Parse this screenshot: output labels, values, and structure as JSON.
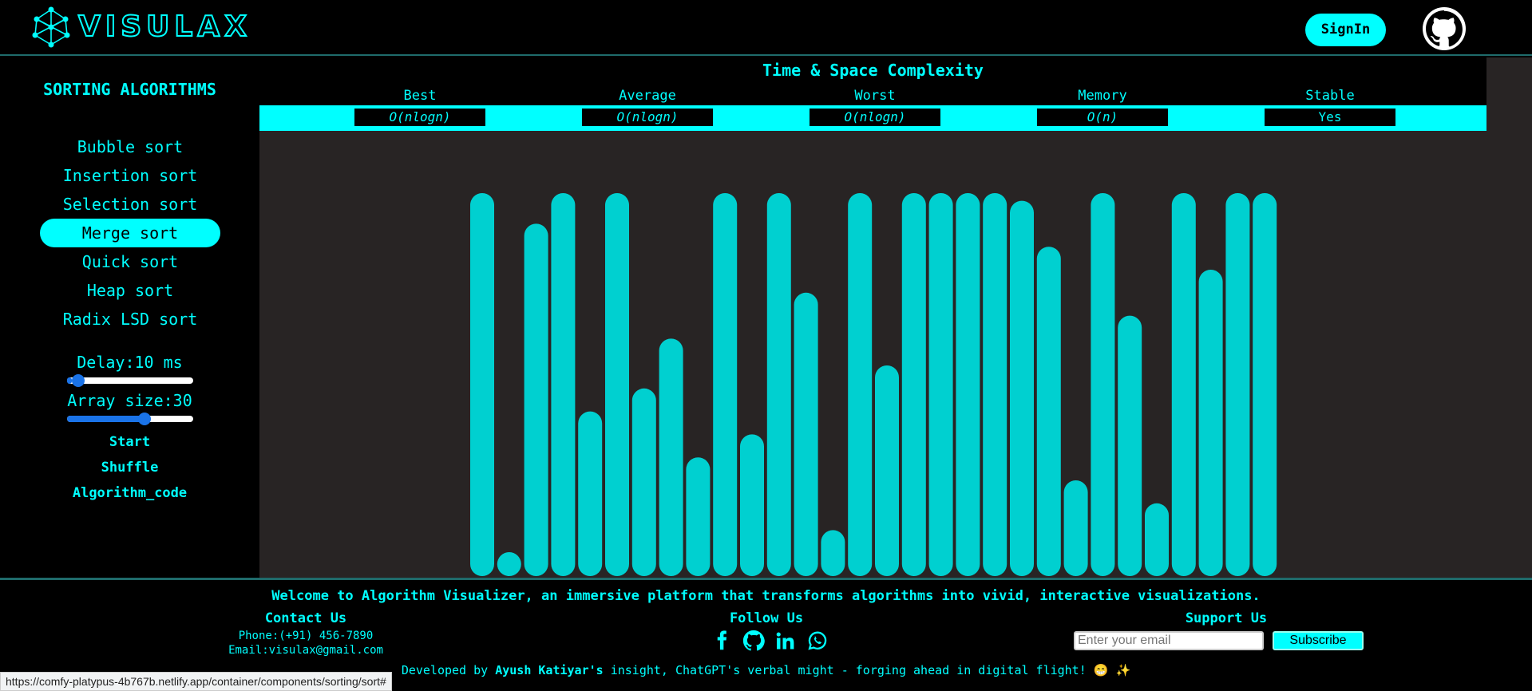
{
  "header": {
    "logo_text": "VISULAX",
    "signin_label": "SignIn"
  },
  "sidebar": {
    "title": "SORTING ALGORITHMS",
    "algorithms": [
      "Bubble sort",
      "Insertion sort",
      "Selection sort",
      "Merge sort",
      "Quick sort",
      "Heap sort",
      "Radix LSD sort"
    ],
    "active_index": 3,
    "delay_label": "Delay:10 ms",
    "delay_fraction": 0.04,
    "size_label": "Array size:30",
    "size_fraction": 0.63,
    "start_label": "Start",
    "shuffle_label": "Shuffle",
    "code_label": "Algorithm_code"
  },
  "complexity": {
    "title": "Time & Space Complexity",
    "columns": [
      {
        "header": "Best",
        "value": "O(nlogn)"
      },
      {
        "header": "Average",
        "value": "O(nlogn)"
      },
      {
        "header": "Worst",
        "value": "O(nlogn)"
      },
      {
        "header": "Memory",
        "value": "O(n)"
      },
      {
        "header": "Stable",
        "value": "Yes"
      }
    ]
  },
  "bars": {
    "color": "#00d0d0",
    "values": [
      100,
      6,
      92,
      100,
      43,
      100,
      49,
      62,
      31,
      100,
      37,
      100,
      74,
      12,
      100,
      55,
      100,
      100,
      100,
      100,
      98,
      86,
      25,
      100,
      68,
      19,
      100,
      80,
      100,
      100
    ]
  },
  "footer": {
    "welcome": "Welcome to Algorithm Visualizer, an immersive platform that transforms algorithms into vivid, interactive visualizations.",
    "contact_title": "Contact Us",
    "phone": "Phone:(+91) 456-7890",
    "email": "Email:visulax@gmail.com",
    "follow_title": "Follow Us",
    "social_icons": [
      "facebook-icon",
      "github-icon",
      "linkedin-icon",
      "whatsapp-icon"
    ],
    "support_title": "Support Us",
    "email_placeholder": "Enter your email",
    "subscribe_label": "Subscribe",
    "dev_prefix": "Developed by ",
    "dev_name": "Ayush Katiyar's",
    "dev_suffix": " insight, ChatGPT's verbal might - forging ahead in digital flight! 😁 ✨"
  },
  "status_url": "https://comfy-platypus-4b767b.netlify.app/container/components/sorting/sort#"
}
